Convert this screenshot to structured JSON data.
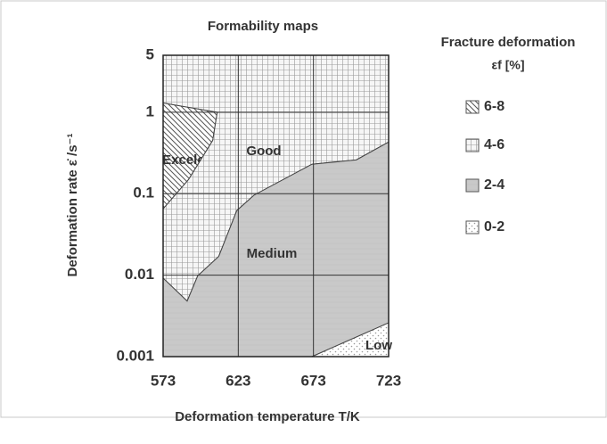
{
  "chart_data": {
    "type": "region",
    "title": "Formability maps",
    "x_label": "Deformation temperature T/K",
    "y_label": "Deformation rate ε̇ /s⁻¹",
    "legend_title": "Fracture deformation",
    "legend_subtitle": "εf [%]",
    "xlim": [
      573,
      723
    ],
    "xticks": [
      573,
      623,
      673,
      723
    ],
    "ylim": [
      0.001,
      5
    ],
    "yticks": [
      0.001,
      0.01,
      0.1,
      1,
      5
    ],
    "y_scale": "log",
    "grid": true,
    "series": [
      {
        "name": "6-8",
        "label": "Excelent",
        "pattern": "hatch",
        "color": "#555555",
        "x": [
          573,
          609,
          606,
          590,
          573
        ],
        "y": [
          1.3,
          1,
          0.45,
          0.15,
          0.065
        ]
      },
      {
        "name": "4-6",
        "label": "Good",
        "pattern": "grid",
        "color": "#9a9a9a",
        "x": [
          573,
          723,
          723,
          701.5,
          672,
          633.5,
          622,
          610,
          596,
          589,
          573,
          573,
          590,
          606,
          609,
          573
        ],
        "y": [
          5,
          5,
          0.43,
          0.26,
          0.23,
          0.096,
          0.062,
          0.017,
          0.0098,
          0.0048,
          0.0092,
          0.065,
          0.15,
          0.45,
          1,
          1.3
        ]
      },
      {
        "name": "2-4",
        "label": "Medium",
        "pattern": "solid",
        "color": "#c9c9c9",
        "x": [
          573,
          589,
          596,
          610,
          622,
          633.5,
          672,
          701.5,
          723,
          723,
          672,
          573
        ],
        "y": [
          0.0092,
          0.0048,
          0.0098,
          0.017,
          0.062,
          0.096,
          0.23,
          0.26,
          0.43,
          0.0026,
          0.001,
          0.001
        ]
      },
      {
        "name": "0-2",
        "label": "Low",
        "pattern": "dots",
        "color": "#999999",
        "x": [
          672,
          723,
          723
        ],
        "y": [
          0.001,
          0.0026,
          0.001
        ]
      }
    ]
  }
}
